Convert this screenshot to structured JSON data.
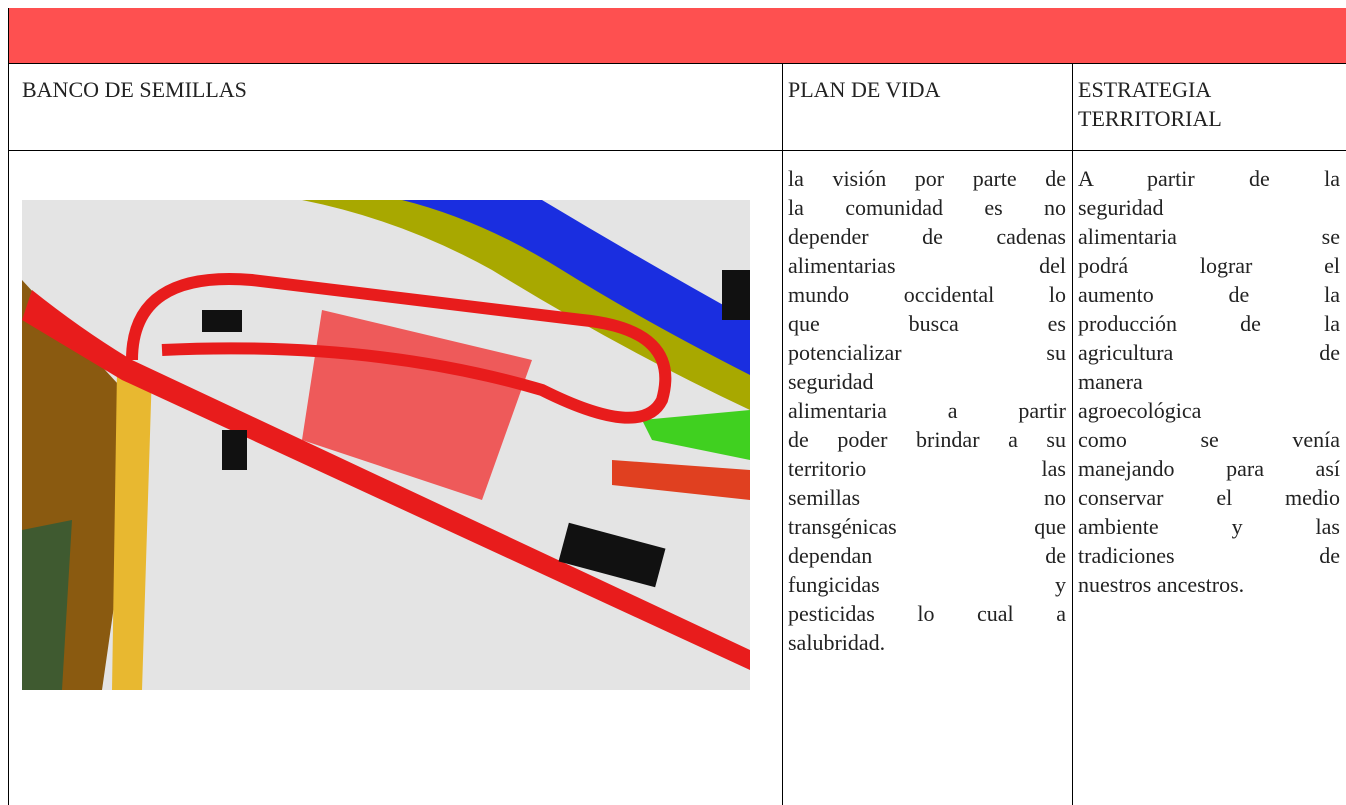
{
  "table": {
    "header": [
      "BANCO DE SEMILLAS",
      "PLAN DE VIDA",
      "ESTRATEGIA TERRITORIAL"
    ],
    "plan_de_vida": [
      "la visión por parte de",
      "la comunidad es no",
      "depender de cadenas",
      "alimentarias del",
      "mundo occidental lo",
      "que busca es",
      "potencializar su",
      "seguridad",
      "alimentaria a partir",
      "de poder brindar a su",
      "territorio las",
      "semillas no",
      "transgénicas que",
      "dependan de",
      "fungicidas y",
      "pesticidas lo cual a",
      "salubridad."
    ],
    "estrategia_territorial": [
      "A partir de la",
      "seguridad",
      "alimentaria se",
      "podrá lograr el",
      "aumento de la",
      "producción de la",
      "agricultura de",
      "manera",
      "agroecológica",
      "como se venía",
      "manejando para así",
      "conservar el medio",
      "ambiente y las",
      "tradiciones de",
      "nuestros ancestros."
    ]
  }
}
